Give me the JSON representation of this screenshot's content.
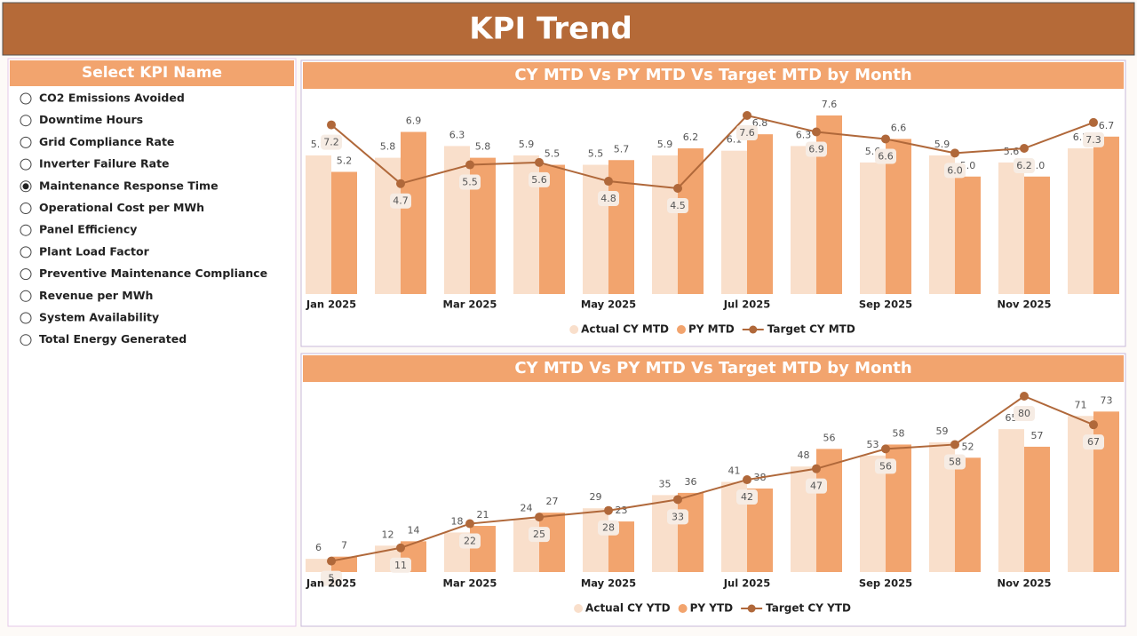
{
  "header": {
    "title": "KPI Trend"
  },
  "slicer": {
    "title": "Select KPI Name",
    "selected": 4,
    "items": [
      "CO2 Emissions Avoided",
      "Downtime Hours",
      "Grid Compliance Rate",
      "Inverter Failure Rate",
      "Maintenance Response Time",
      "Operational Cost per MWh",
      "Panel Efficiency",
      "Plant Load Factor",
      "Preventive Maintenance Compliance",
      "Revenue per MWh",
      "System Availability",
      "Total Energy Generated"
    ]
  },
  "chart_data": [
    {
      "type": "combo",
      "title": "CY MTD Vs PY MTD Vs Target MTD by Month",
      "categories": [
        "Jan 2025",
        null,
        "Mar 2025",
        null,
        "May 2025",
        null,
        "Jul 2025",
        null,
        "Sep 2025",
        null,
        "Nov 2025",
        null
      ],
      "series": [
        {
          "name": "Actual CY MTD",
          "type": "bar",
          "color": "#f9dfcb",
          "values": [
            5.9,
            5.8,
            6.3,
            5.9,
            5.5,
            5.9,
            6.1,
            6.3,
            5.6,
            5.9,
            5.6,
            6.2
          ]
        },
        {
          "name": "PY MTD",
          "type": "bar",
          "color": "#f2a46e",
          "values": [
            5.2,
            6.9,
            5.8,
            5.5,
            5.7,
            6.2,
            6.8,
            7.6,
            6.6,
            5.0,
            5.0,
            6.7
          ],
          "value_labels": [
            "5.2",
            "6.9",
            "5.8",
            "5.5",
            "5.7",
            "6.2",
            "6.8",
            "7.6",
            "6.6",
            "5.0",
            "5.0",
            "6.7"
          ]
        },
        {
          "name": "Target CY MTD",
          "type": "line",
          "color": "#b0683a",
          "values": [
            7.2,
            4.7,
            5.5,
            5.6,
            4.8,
            4.5,
            7.6,
            6.9,
            6.6,
            6.0,
            6.2,
            7.3
          ],
          "value_labels": [
            "7.2",
            "4.7",
            "5.5",
            "5.6",
            "4.8",
            "4.5",
            "7.6",
            "6.9",
            "6.6",
            "6.0",
            "6.2",
            "7.3"
          ]
        }
      ]
    },
    {
      "type": "combo",
      "title": "CY MTD Vs PY MTD Vs Target MTD by Month",
      "categories": [
        "Jan 2025",
        null,
        "Mar 2025",
        null,
        "May 2025",
        null,
        "Jul 2025",
        null,
        "Sep 2025",
        null,
        "Nov 2025",
        null
      ],
      "series": [
        {
          "name": "Actual CY YTD",
          "type": "bar",
          "color": "#f9dfcb",
          "values": [
            6,
            12,
            18,
            24,
            29,
            35,
            41,
            48,
            53,
            59,
            65,
            71
          ]
        },
        {
          "name": "PY YTD",
          "type": "bar",
          "color": "#f2a46e",
          "values": [
            7,
            14,
            21,
            27,
            23,
            36,
            38,
            56,
            58,
            52,
            57,
            73
          ]
        },
        {
          "name": "Target CY YTD",
          "type": "line",
          "color": "#b0683a",
          "values": [
            5,
            11,
            22,
            25,
            28,
            33,
            42,
            47,
            56,
            58,
            80,
            67
          ]
        }
      ]
    }
  ]
}
